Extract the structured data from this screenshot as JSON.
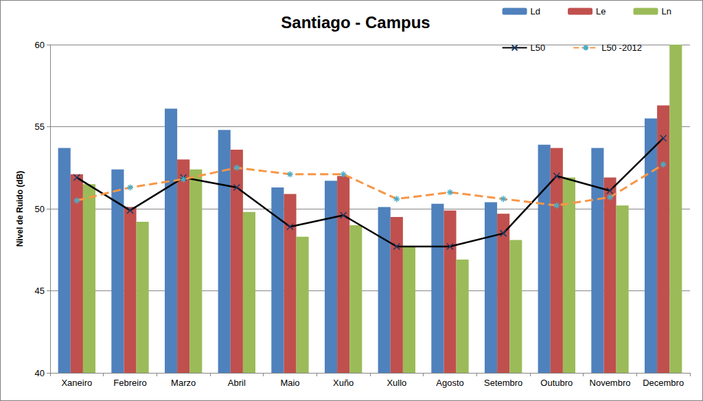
{
  "chart_data": {
    "type": "bar",
    "title": "Santiago - Campus",
    "y_label": "Nivel de Ruido (dB)",
    "categories": [
      "Xaneiro",
      "Febreiro",
      "Marzo",
      "Abril",
      "Maio",
      "Xuño",
      "Xullo",
      "Agosto",
      "Setembro",
      "Outubro",
      "Novembro",
      "Decembro"
    ],
    "series": [
      {
        "name": "Ld",
        "type": "bar",
        "color": "#4f81bd",
        "values": [
          53.7,
          52.4,
          56.1,
          54.8,
          51.3,
          51.7,
          50.1,
          50.3,
          50.4,
          53.9,
          53.7,
          55.5
        ]
      },
      {
        "name": "Le",
        "type": "bar",
        "color": "#c0504d",
        "values": [
          52.1,
          50.1,
          53.0,
          53.6,
          50.9,
          52.0,
          49.5,
          49.9,
          49.7,
          53.7,
          51.9,
          56.3
        ]
      },
      {
        "name": "Ln",
        "type": "bar",
        "color": "#9bbb59",
        "values": [
          51.5,
          49.2,
          52.4,
          49.8,
          48.3,
          49.0,
          47.7,
          46.9,
          48.1,
          51.9,
          50.2,
          60.0
        ]
      },
      {
        "name": "L50",
        "type": "line",
        "color": "#000000",
        "marker": "x",
        "line_style": "solid",
        "values": [
          51.9,
          49.9,
          51.9,
          51.3,
          48.9,
          49.6,
          47.7,
          47.7,
          48.5,
          52.0,
          51.1,
          54.3
        ]
      },
      {
        "name": "L50 -2012",
        "type": "line",
        "color": "#f79646",
        "marker": "asterisk",
        "line_style": "dashed",
        "values": [
          50.5,
          51.3,
          51.8,
          52.5,
          52.1,
          52.1,
          50.6,
          51.0,
          50.6,
          50.2,
          50.7,
          52.7
        ]
      }
    ],
    "ylim": [
      40,
      60
    ],
    "yticks": [
      40,
      45,
      50,
      55,
      60
    ],
    "grid": true,
    "legend": "top-right"
  }
}
